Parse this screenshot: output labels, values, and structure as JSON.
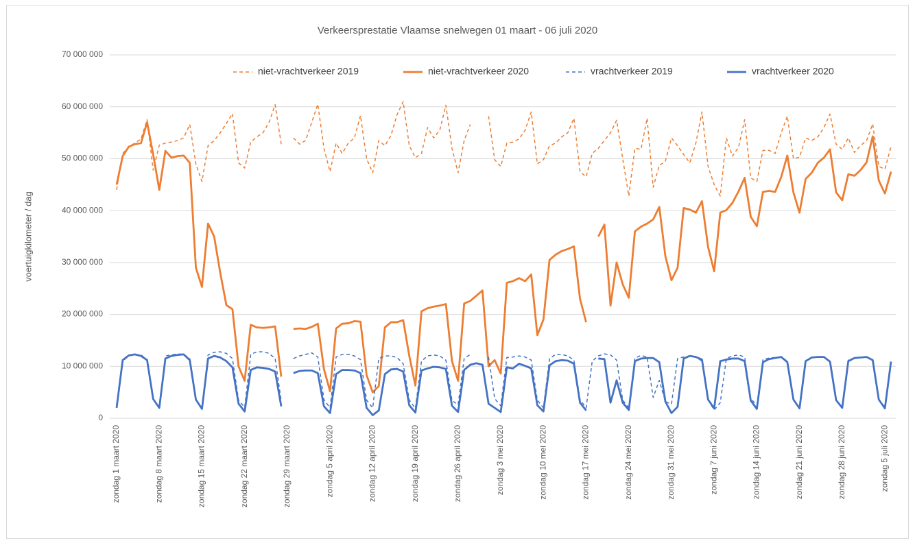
{
  "chart_data": {
    "type": "line",
    "title": "Verkeersprestatie  Vlaamse snelwegen 01 maart - 06 juli 2020",
    "y_label": "voertuigkilometer / dag",
    "categories": [
      "zondag 1 maart 2020",
      null,
      null,
      null,
      null,
      null,
      null,
      "zondag 8 maart 2020",
      null,
      null,
      null,
      null,
      null,
      null,
      "zondag 15 maart 2020",
      null,
      null,
      null,
      null,
      null,
      null,
      "zondag 22 maart 2020",
      null,
      null,
      null,
      null,
      null,
      null,
      "zondag 29 maart 2020",
      null,
      null,
      null,
      null,
      null,
      null,
      "zondag 5 april 2020",
      null,
      null,
      null,
      null,
      null,
      null,
      "zondag 12 april 2020",
      null,
      null,
      null,
      null,
      null,
      null,
      "zondag 19 april 2020",
      null,
      null,
      null,
      null,
      null,
      null,
      "zondag 26 april 2020",
      null,
      null,
      null,
      null,
      null,
      null,
      "zondag 3 mei 2020",
      null,
      null,
      null,
      null,
      null,
      null,
      "zondag 10 mei 2020",
      null,
      null,
      null,
      null,
      null,
      null,
      "zondag 17 mei 2020",
      null,
      null,
      null,
      null,
      null,
      null,
      "zondag 24 mei 2020",
      null,
      null,
      null,
      null,
      null,
      null,
      "zondag 31 mei 2020",
      null,
      null,
      null,
      null,
      null,
      null,
      "zondag 7 juni 2020",
      null,
      null,
      null,
      null,
      null,
      null,
      "zondag 14 juni 2020",
      null,
      null,
      null,
      null,
      null,
      null,
      "zondag 21 juni 2020",
      null,
      null,
      null,
      null,
      null,
      null,
      "zondag 28 juni 2020",
      null,
      null,
      null,
      null,
      null,
      null,
      "zondag 5 juli 2020",
      null
    ],
    "ylim": [
      0,
      70000000
    ],
    "yticks": [
      0,
      {
        "value": 10000000,
        "label": "10 000 000"
      },
      {
        "value": 20000000,
        "label": "20 000 000"
      },
      {
        "value": 30000000,
        "label": "30 000 000"
      },
      {
        "value": 40000000,
        "label": "40 000 000"
      },
      {
        "value": 50000000,
        "label": "50 000 000"
      },
      {
        "value": 60000000,
        "label": "60 000 000"
      },
      {
        "value": 70000000,
        "label": "70 000 000"
      }
    ],
    "grid": true,
    "legend": "top",
    "series": [
      {
        "name": "niet-vrachtverkeer 2019",
        "color": "#ED7D31",
        "dashed": true,
        "values": [
          44000000,
          51000000,
          52300000,
          53000000,
          53800000,
          57500000,
          47800000,
          52600000,
          53000000,
          53200000,
          53500000,
          54000000,
          56600000,
          49000000,
          45600000,
          52500000,
          53500000,
          55000000,
          56800000,
          58700000,
          49200000,
          48200000,
          53200000,
          54200000,
          55000000,
          57000000,
          60400000,
          52800000,
          null,
          54000000,
          52800000,
          53500000,
          57000000,
          60500000,
          52000000,
          47500000,
          53000000,
          51000000,
          53000000,
          54000000,
          58300000,
          50000000,
          47300000,
          53500000,
          52500000,
          54500000,
          58500000,
          61000000,
          52500000,
          50200000,
          51000000,
          56000000,
          54000000,
          55500000,
          60300000,
          52000000,
          47300000,
          53500000,
          56600000,
          null,
          null,
          58200000,
          49800000,
          48500000,
          53000000,
          53200000,
          53800000,
          55500000,
          59000000,
          49000000,
          49800000,
          52500000,
          53000000,
          54200000,
          55000000,
          57800000,
          47500000,
          46500000,
          51000000,
          52000000,
          53500000,
          55000000,
          57400000,
          50000000,
          42800000,
          52000000,
          51800000,
          57800000,
          44500000,
          48700000,
          49500000,
          54000000,
          52500000,
          50800000,
          49200000,
          53000000,
          59000000,
          48500000,
          45000000,
          42800000,
          54000000,
          50500000,
          52200000,
          57500000,
          46300000,
          45600000,
          51600000,
          51600000,
          51000000,
          55000000,
          58200000,
          50000000,
          50300000,
          54000000,
          53500000,
          54200000,
          56000000,
          58600000,
          52800000,
          51800000,
          54000000,
          51200000,
          52500000,
          53500000,
          56700000,
          48500000,
          48000000,
          52300000
        ]
      },
      {
        "name": "niet-vrachtverkeer 2020",
        "color": "#ED7D31",
        "dashed": false,
        "values": [
          45000000,
          50500000,
          52300000,
          52800000,
          53000000,
          57000000,
          50800000,
          44000000,
          51500000,
          50200000,
          50500000,
          50600000,
          49200000,
          29000000,
          25300000,
          37500000,
          35000000,
          28000000,
          21800000,
          21000000,
          10000000,
          7200000,
          18000000,
          17500000,
          17400000,
          17500000,
          17700000,
          8000000,
          null,
          17200000,
          17300000,
          17200000,
          17600000,
          18200000,
          9500000,
          5200000,
          17300000,
          18200000,
          18300000,
          18700000,
          18600000,
          8300000,
          5000000,
          6200000,
          17500000,
          18500000,
          18500000,
          18900000,
          12000000,
          6300000,
          20600000,
          21200000,
          21500000,
          21700000,
          22000000,
          11000000,
          7200000,
          22100000,
          22600000,
          23600000,
          24600000,
          10000000,
          11200000,
          8600000,
          26100000,
          26400000,
          27000000,
          26400000,
          27700000,
          16000000,
          19000000,
          30500000,
          31500000,
          32200000,
          32600000,
          33100000,
          23000000,
          18500000,
          null,
          35000000,
          37300000,
          21700000,
          30000000,
          25800000,
          23200000,
          36000000,
          36900000,
          37500000,
          38300000,
          40700000,
          31200000,
          26600000,
          29000000,
          40500000,
          40200000,
          39600000,
          41800000,
          33000000,
          28300000,
          39600000,
          40100000,
          41500000,
          43700000,
          46300000,
          38800000,
          37000000,
          43600000,
          43800000,
          43600000,
          46500000,
          50600000,
          43500000,
          39600000,
          46100000,
          47300000,
          49200000,
          50200000,
          51800000,
          43500000,
          42000000,
          47000000,
          46700000,
          47800000,
          49300000,
          54300000,
          45800000,
          43300000,
          47500000
        ]
      },
      {
        "name": "vrachtverkeer 2019",
        "color": "#4472C4",
        "dashed": true,
        "values": [
          2000000,
          11000000,
          12000000,
          12300000,
          12200000,
          11300000,
          3800000,
          2000000,
          12000000,
          12200000,
          12400000,
          12300000,
          11500000,
          3700000,
          1900000,
          12200000,
          12700000,
          12800000,
          12500000,
          11500000,
          3500000,
          2100000,
          12300000,
          12800000,
          12800000,
          12500000,
          11500000,
          3300000,
          null,
          11500000,
          12000000,
          12300000,
          12600000,
          11800000,
          3600000,
          2000000,
          11800000,
          12300000,
          12300000,
          12000000,
          11300000,
          3500000,
          2000000,
          11500000,
          12000000,
          12000000,
          11700000,
          10500000,
          3500000,
          1900000,
          11000000,
          12000000,
          12200000,
          12000000,
          11200000,
          3400000,
          2600000,
          11500000,
          12300000,
          null,
          null,
          11800000,
          3800000,
          2400000,
          11700000,
          11800000,
          12000000,
          11800000,
          11200000,
          3500000,
          2000000,
          11500000,
          12300000,
          12300000,
          12000000,
          11200000,
          3600000,
          2000000,
          11000000,
          12000000,
          12400000,
          12200000,
          11200000,
          3500000,
          2000000,
          11600000,
          12100000,
          11800000,
          4000000,
          7300000,
          3200000,
          2700000,
          11500000,
          11800000,
          12000000,
          11800000,
          11000000,
          3500000,
          1600000,
          3000000,
          11500000,
          12000000,
          12200000,
          11800000,
          3800000,
          2500000,
          11300000,
          11600000,
          11700000,
          11800000,
          11000000,
          3500000,
          2000000,
          11000000,
          11600000,
          11800000,
          11800000,
          11000000,
          3500000,
          2000000,
          11200000,
          11600000,
          11700000,
          11800000,
          11300000,
          3500000,
          2200000,
          10800000
        ]
      },
      {
        "name": "vrachtverkeer 2020",
        "color": "#4472C4",
        "dashed": false,
        "values": [
          2000000,
          11200000,
          12100000,
          12300000,
          12000000,
          11200000,
          3700000,
          2000000,
          11500000,
          12000000,
          12200000,
          12300000,
          11200000,
          3600000,
          1800000,
          11500000,
          12000000,
          11700000,
          11000000,
          9800000,
          2800000,
          1300000,
          9300000,
          9800000,
          9700000,
          9500000,
          9000000,
          2300000,
          null,
          8700000,
          9100000,
          9200000,
          9200000,
          8700000,
          2300000,
          1000000,
          8500000,
          9300000,
          9300000,
          9200000,
          8700000,
          2000000,
          600000,
          1500000,
          8500000,
          9400000,
          9500000,
          9000000,
          2500000,
          1100000,
          9200000,
          9600000,
          9900000,
          9800000,
          9500000,
          2400000,
          1200000,
          9300000,
          10300000,
          10600000,
          10300000,
          2800000,
          2000000,
          1200000,
          9800000,
          9600000,
          10500000,
          10100000,
          9600000,
          2500000,
          1300000,
          10200000,
          11000000,
          11200000,
          11100000,
          10500000,
          3000000,
          1500000,
          null,
          11500000,
          11400000,
          3000000,
          7300000,
          3000000,
          1600000,
          11000000,
          11500000,
          11600000,
          11600000,
          10800000,
          3200000,
          1000000,
          2200000,
          11500000,
          12000000,
          11800000,
          11300000,
          3600000,
          1900000,
          11000000,
          11300000,
          11500000,
          11500000,
          11000000,
          3400000,
          1800000,
          10800000,
          11400000,
          11600000,
          11800000,
          10800000,
          3600000,
          1900000,
          11000000,
          11700000,
          11800000,
          11800000,
          10900000,
          3500000,
          2000000,
          11000000,
          11600000,
          11700000,
          11800000,
          11200000,
          3600000,
          1900000,
          10900000
        ]
      }
    ]
  }
}
